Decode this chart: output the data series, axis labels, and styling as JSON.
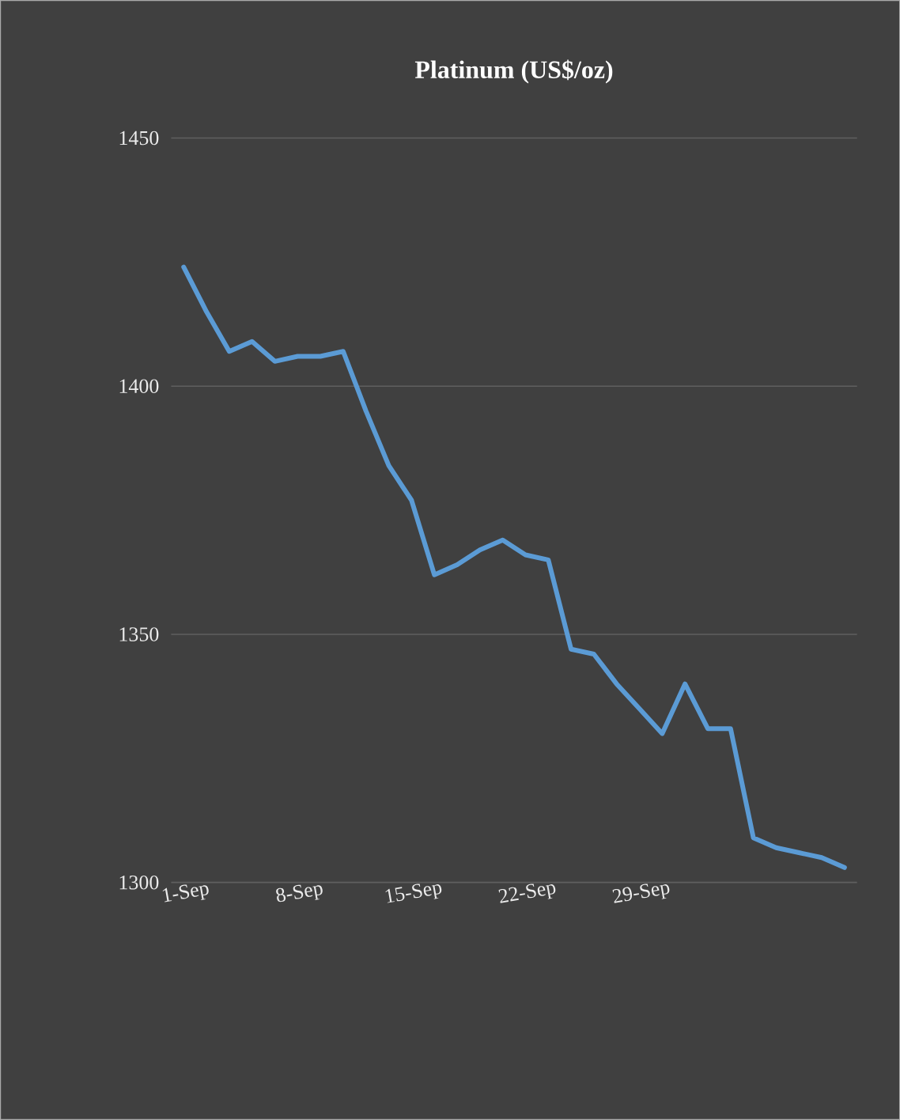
{
  "chart_data": {
    "type": "line",
    "title": "Platinum (US$/oz)",
    "categories": [
      "1-Sep",
      null,
      null,
      null,
      null,
      "8-Sep",
      null,
      null,
      null,
      null,
      "15-Sep",
      null,
      null,
      null,
      null,
      "22-Sep",
      null,
      null,
      null,
      null,
      "29-Sep",
      null,
      null,
      null,
      null,
      null,
      null,
      null,
      null,
      null
    ],
    "series": [
      {
        "color": "#5b9bd5",
        "values": [
          1424,
          1415,
          1407,
          1409,
          1405,
          1406,
          1406,
          1407,
          1395,
          1384,
          1377,
          1362,
          1364,
          1367,
          1369,
          1366,
          1365,
          1347,
          1346,
          1340,
          1335,
          1330,
          1340,
          1331,
          1331,
          1309,
          1307,
          1306,
          1305,
          1303
        ]
      }
    ],
    "ylim": [
      1300,
      1450
    ],
    "yticks": [
      1300,
      1350,
      1400,
      1450
    ],
    "grid": "y",
    "marker": "none",
    "line_style": "solid"
  }
}
